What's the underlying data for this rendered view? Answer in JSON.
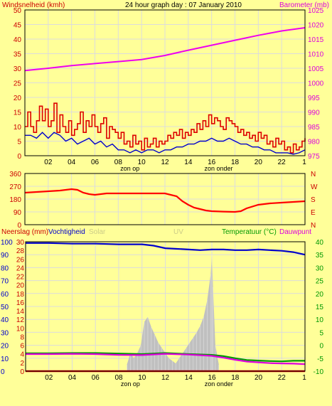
{
  "page": {
    "background": "#ffff99",
    "plot_background": "#ffff99",
    "grid_color": "#dcdcdc"
  },
  "chart_data": [
    {
      "type": "line",
      "title": "24 hour graph day : 07 January 2010",
      "left_axis_label": "Windsnelheid (kmh)",
      "right_axis_label": "Barometer (mb)",
      "left_axis": {
        "ticks": [
          "0",
          "5",
          "10",
          "15",
          "20",
          "25",
          "30",
          "35",
          "40",
          "45",
          "50"
        ],
        "range": [
          0,
          50
        ]
      },
      "right_axis": {
        "ticks": [
          "975",
          "980",
          "985",
          "990",
          "995",
          "1000",
          "1005",
          "1010",
          "1015",
          "1020",
          "1025"
        ],
        "range": [
          975,
          1025
        ]
      },
      "x_axis": {
        "ticks": [
          "02",
          "04",
          "06",
          "08",
          "10",
          "12",
          "14",
          "16",
          "18",
          "20",
          "22"
        ],
        "range": [
          0,
          24
        ]
      },
      "x_annotations": [
        {
          "text": "zon op",
          "x": 9.0
        },
        {
          "text": "zon onder",
          "x": 16.6
        }
      ],
      "grid": true,
      "series": [
        {
          "name": "Windsnelheid (kmh)",
          "axis": "left",
          "color": "#dd0000",
          "x": [
            0,
            0.25,
            0.5,
            0.75,
            1,
            1.25,
            1.5,
            1.75,
            2,
            2.25,
            2.5,
            2.75,
            3,
            3.25,
            3.5,
            3.75,
            4,
            4.25,
            4.5,
            4.75,
            5,
            5.25,
            5.5,
            5.75,
            6,
            6.25,
            6.5,
            6.75,
            7,
            7.25,
            7.5,
            7.75,
            8,
            8.25,
            8.5,
            8.75,
            9,
            9.25,
            9.5,
            9.75,
            10,
            10.25,
            10.5,
            10.75,
            11,
            11.25,
            11.5,
            11.75,
            12,
            12.25,
            12.5,
            12.75,
            13,
            13.25,
            13.5,
            13.75,
            14,
            14.25,
            14.5,
            14.75,
            15,
            15.25,
            15.5,
            15.75,
            16,
            16.25,
            16.5,
            16.75,
            17,
            17.25,
            17.5,
            17.75,
            18,
            18.25,
            18.5,
            18.75,
            19,
            19.25,
            19.5,
            19.75,
            20,
            20.25,
            20.5,
            20.75,
            21,
            21.25,
            21.5,
            21.75,
            22,
            22.25,
            22.5,
            22.75,
            23,
            23.25,
            23.5,
            23.75,
            24
          ],
          "values": [
            10,
            15,
            10,
            8,
            12,
            17,
            12,
            16,
            10,
            12,
            18,
            8,
            14,
            10,
            8,
            12,
            7,
            9,
            11,
            15,
            8,
            12,
            10,
            14,
            10,
            8,
            11,
            13,
            6,
            10,
            9,
            8,
            6,
            8,
            4,
            5,
            3,
            7,
            4,
            5,
            2,
            6,
            3,
            4,
            6,
            3,
            5,
            4,
            5,
            7,
            6,
            8,
            7,
            9,
            6,
            8,
            7,
            9,
            8,
            11,
            9,
            12,
            10,
            14,
            11,
            13,
            12,
            10,
            9,
            13,
            12,
            11,
            10,
            8,
            9,
            7,
            8,
            6,
            7,
            5,
            8,
            6,
            7,
            4,
            5,
            3,
            6,
            4,
            5,
            2,
            3,
            1,
            4,
            2,
            3,
            5,
            6
          ]
        },
        {
          "name": "Windsnelheid (gem.)",
          "axis": "left",
          "color": "#0000cc",
          "x": [
            0,
            0.5,
            1,
            1.5,
            2,
            2.5,
            3,
            3.5,
            4,
            4.5,
            5,
            5.5,
            6,
            6.5,
            7,
            7.5,
            8,
            8.5,
            9,
            9.5,
            10,
            10.5,
            11,
            11.5,
            12,
            12.5,
            13,
            13.5,
            14,
            14.5,
            15,
            15.5,
            16,
            16.5,
            17,
            17.5,
            18,
            18.5,
            19,
            19.5,
            20,
            20.5,
            21,
            21.5,
            22,
            22.5,
            23,
            23.5,
            24
          ],
          "values": [
            7,
            7,
            6,
            8,
            6,
            8,
            7,
            5,
            6,
            4,
            5,
            6,
            4,
            5,
            3,
            4,
            2,
            2,
            1,
            2,
            1,
            2,
            2,
            1,
            2,
            2,
            3,
            3,
            4,
            4,
            5,
            5,
            6,
            5,
            5,
            6,
            5,
            4,
            4,
            3,
            3,
            2,
            2,
            1,
            1,
            1,
            0.5,
            1,
            2
          ]
        },
        {
          "name": "Barometer (mb)",
          "axis": "right",
          "color": "#ee00ee",
          "x": [
            0,
            2,
            4,
            6,
            8,
            10,
            12,
            14,
            16,
            18,
            20,
            22,
            24
          ],
          "values": [
            1004.2,
            1005.0,
            1005.9,
            1006.6,
            1007.3,
            1008.0,
            1009.4,
            1011.2,
            1012.9,
            1014.6,
            1016.3,
            1017.8,
            1018.9
          ]
        }
      ]
    },
    {
      "type": "line",
      "title": "",
      "left_axis": {
        "ticks": [
          "0",
          "90",
          "180",
          "270",
          "360"
        ],
        "range": [
          0,
          360
        ]
      },
      "right_axis": {
        "ticks": [
          "N",
          "W",
          "S",
          "E",
          "N"
        ]
      },
      "x_axis": {
        "ticks": [],
        "range": [
          0,
          24
        ]
      },
      "grid": true,
      "series": [
        {
          "name": "Windrichting",
          "axis": "left",
          "color": "#ff0000",
          "x": [
            0,
            1,
            2,
            3,
            4,
            4.5,
            5,
            5.5,
            6,
            6.5,
            7,
            8,
            9,
            10,
            11,
            12,
            13,
            13.5,
            14,
            14.5,
            15,
            15.5,
            16,
            17,
            18,
            18.5,
            19,
            20,
            21,
            22,
            23,
            24
          ],
          "values": [
            225,
            230,
            235,
            240,
            250,
            245,
            225,
            215,
            210,
            215,
            220,
            220,
            220,
            220,
            220,
            220,
            200,
            165,
            140,
            120,
            110,
            100,
            95,
            92,
            90,
            95,
            115,
            140,
            150,
            155,
            160,
            165
          ]
        }
      ]
    },
    {
      "type": "line",
      "title": "",
      "labels": [
        "Neerslag (mm)",
        "Vochtigheid",
        "Solar",
        "UV",
        "Temperatuur (°C)",
        "Dauwpunt"
      ],
      "left_axis": {
        "ticks": [
          "0",
          "10",
          "20",
          "30",
          "40",
          "50",
          "60",
          "70",
          "80",
          "90",
          "100"
        ],
        "range": [
          0,
          100
        ]
      },
      "left_axis_2": {
        "ticks": [
          "0",
          "2",
          "4",
          "6",
          "8",
          "10",
          "12",
          "14",
          "16",
          "18",
          "20",
          "22",
          "24",
          "26",
          "28",
          "30"
        ],
        "range": [
          0,
          30
        ]
      },
      "right_axis": {
        "ticks": [
          "-10",
          "-5",
          "0",
          "5",
          "10",
          "15",
          "20",
          "25",
          "30",
          "35",
          "40"
        ],
        "range": [
          -10,
          40
        ]
      },
      "x_axis": {
        "ticks": [
          "02",
          "04",
          "06",
          "08",
          "10",
          "12",
          "14",
          "16",
          "18",
          "20",
          "22"
        ],
        "range": [
          0,
          24
        ]
      },
      "x_annotations": [
        {
          "text": "zon op",
          "x": 9.0
        },
        {
          "text": "zon onder",
          "x": 16.6
        }
      ],
      "grid": true,
      "series": [
        {
          "name": "Vochtigheid",
          "axis": "left",
          "color": "#0000cc",
          "x": [
            0,
            2,
            4,
            6,
            8,
            9,
            10,
            11,
            12,
            13,
            14,
            15,
            16,
            17,
            18,
            19,
            20,
            21,
            22,
            23,
            24
          ],
          "values": [
            99,
            99,
            98.5,
            98.5,
            98,
            98,
            98,
            97,
            95,
            94.5,
            94,
            93.5,
            94,
            94,
            93.5,
            93.5,
            94,
            93.5,
            93,
            92,
            90
          ]
        },
        {
          "name": "Solar",
          "axis": "left",
          "color": "#c0c0c0",
          "fill": true,
          "x": [
            8.7,
            9.0,
            9.3,
            9.6,
            9.9,
            10.2,
            10.5,
            10.8,
            11.1,
            11.4,
            11.7,
            12.0,
            12.3,
            12.6,
            12.9,
            13.2,
            13.5,
            13.8,
            14.1,
            14.4,
            14.7,
            15.0,
            15.3,
            15.6,
            15.9,
            16.0,
            16.1,
            16.3,
            16.6
          ],
          "values": [
            5,
            14,
            10,
            14,
            20,
            38,
            42,
            34,
            28,
            22,
            18,
            14,
            10,
            8,
            6,
            10,
            14,
            18,
            22,
            26,
            30,
            35,
            42,
            55,
            75,
            90,
            65,
            20,
            5
          ]
        },
        {
          "name": "Temperatuur (°C)",
          "axis": "right",
          "color": "#009900",
          "x": [
            0,
            2,
            4,
            6,
            8,
            10,
            12,
            14,
            16,
            17,
            18,
            19,
            20,
            21,
            22,
            23,
            24
          ],
          "values": [
            -3.1,
            -3.1,
            -3.0,
            -3.0,
            -3.2,
            -3.4,
            -3.0,
            -3.4,
            -3.7,
            -4.2,
            -5.0,
            -5.7,
            -5.9,
            -6.1,
            -6.2,
            -6.0,
            -6.0
          ]
        },
        {
          "name": "Dauwpunt",
          "axis": "right",
          "color": "#dd00dd",
          "x": [
            0,
            2,
            4,
            6,
            8,
            10,
            12,
            14,
            16,
            17,
            18,
            19,
            20,
            21,
            22,
            23,
            24
          ],
          "values": [
            -3.4,
            -3.4,
            -3.3,
            -3.4,
            -3.7,
            -3.8,
            -3.3,
            -3.6,
            -4.1,
            -4.8,
            -5.6,
            -6.3,
            -6.6,
            -6.9,
            -7.0,
            -7.1,
            -7.3
          ]
        },
        {
          "name": "Neerslag (mm)",
          "axis": "left2",
          "color": "#dd0000",
          "x": [
            0,
            24
          ],
          "values": [
            0,
            0
          ]
        }
      ]
    }
  ]
}
